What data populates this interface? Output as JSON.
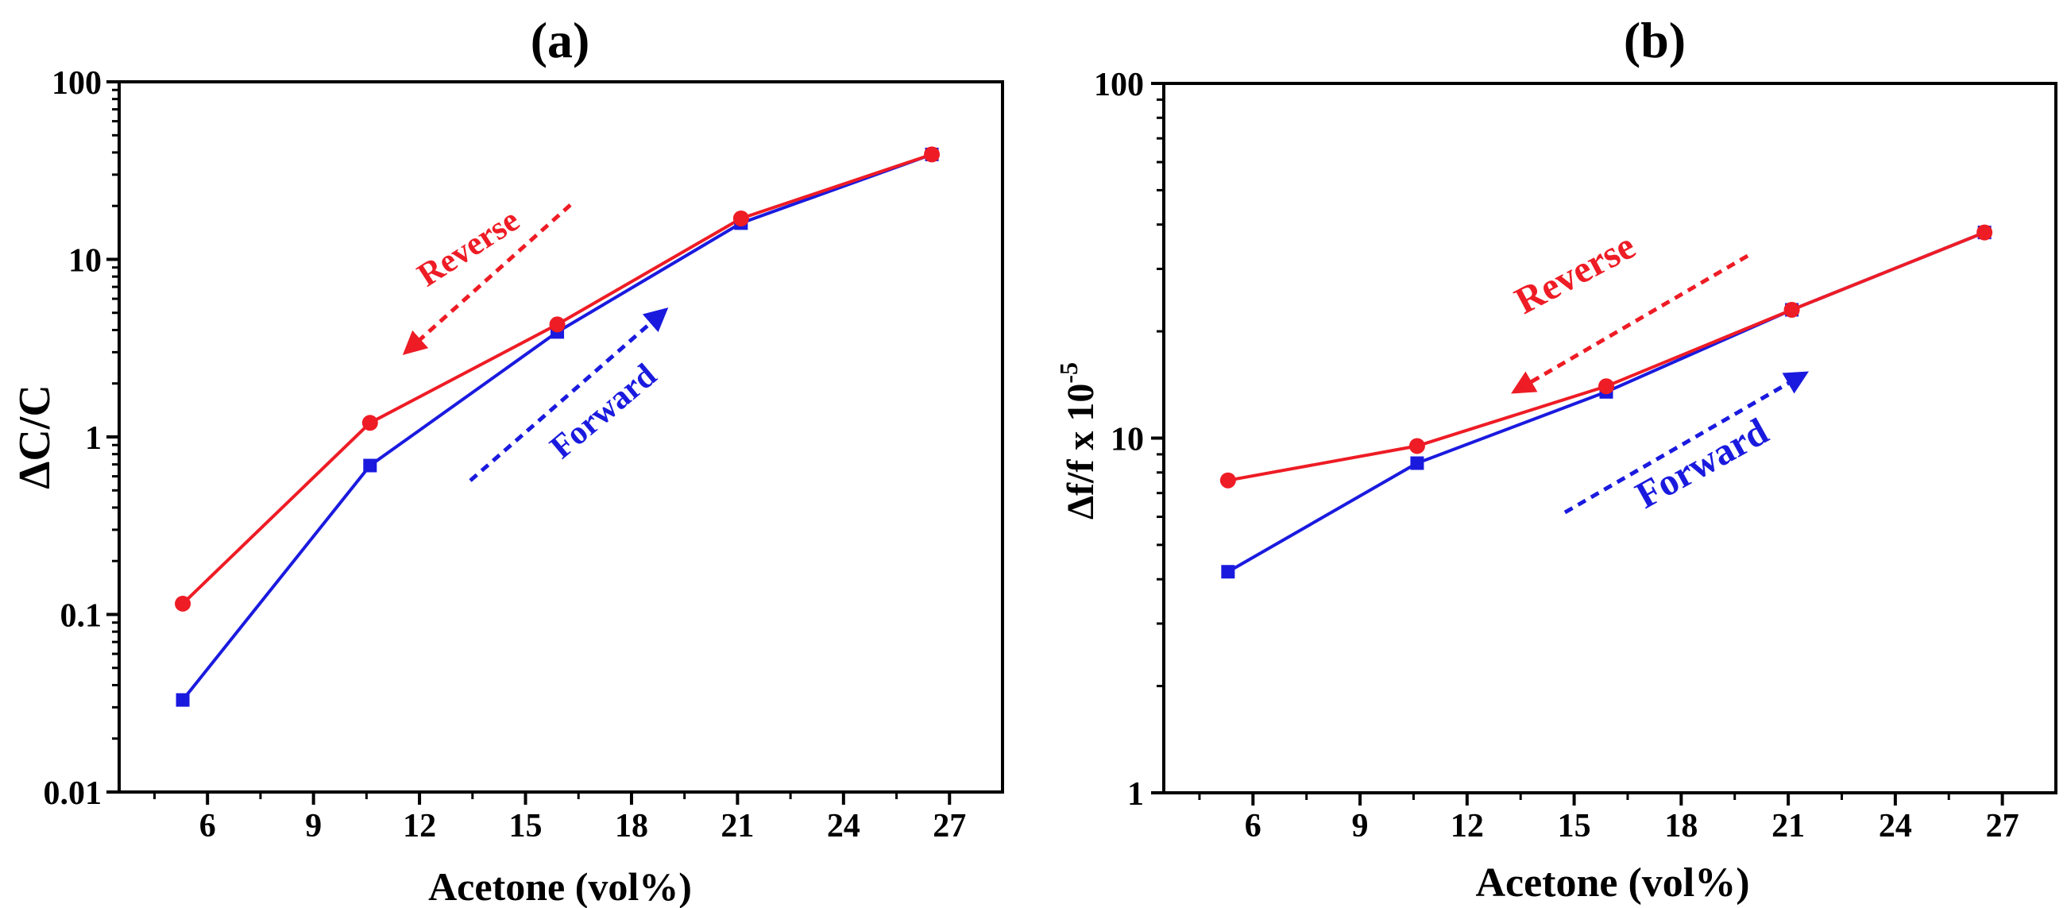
{
  "colors": {
    "reverse": "#ee1c25",
    "forward": "#1a1adf",
    "axis": "#000000"
  },
  "chart_data": [
    {
      "type": "line",
      "panel_label": "(a)",
      "title": "(a)",
      "xlabel": "Acetone (vol%)",
      "ylabel": "ΔC/C",
      "yscale": "log",
      "xlim": [
        3.5,
        28.5
      ],
      "ylim": [
        0.01,
        100
      ],
      "xticks": [
        6,
        9,
        12,
        15,
        18,
        21,
        24,
        27
      ],
      "xtick_labels": [
        "6",
        "9",
        "12",
        "15",
        "18",
        "21",
        "24",
        "27"
      ],
      "yticks": [
        0.01,
        0.1,
        1,
        10,
        100
      ],
      "ytick_labels": [
        "0.01",
        "0.1",
        "1",
        "10",
        "100"
      ],
      "series": [
        {
          "name": "Reverse",
          "marker": "circle",
          "color": "#ee1c25",
          "x": [
            5.3,
            10.6,
            15.9,
            21.1,
            26.5
          ],
          "y": [
            0.115,
            1.2,
            4.3,
            17,
            39
          ]
        },
        {
          "name": "Forward",
          "marker": "square",
          "color": "#1a1adf",
          "x": [
            5.3,
            10.6,
            15.9,
            21.1,
            26.5
          ],
          "y": [
            0.033,
            0.69,
            3.9,
            16,
            39
          ]
        }
      ],
      "annotations": [
        {
          "text": "Reverse",
          "color": "#ee1c25",
          "arrow_direction": "down-left"
        },
        {
          "text": "Forward",
          "color": "#1a1adf",
          "arrow_direction": "up-right"
        }
      ]
    },
    {
      "type": "line",
      "panel_label": "(b)",
      "title": "(b)",
      "xlabel": "Acetone (vol%)",
      "ylabel": "Δf/f x 10",
      "ylabel_exponent": "-5",
      "yscale": "log",
      "xlim": [
        3.5,
        28.5
      ],
      "ylim": [
        1,
        100
      ],
      "xticks": [
        6,
        9,
        12,
        15,
        18,
        21,
        24,
        27
      ],
      "xtick_labels": [
        "6",
        "9",
        "12",
        "15",
        "18",
        "21",
        "24",
        "27"
      ],
      "yticks": [
        1,
        10,
        100
      ],
      "ytick_labels": [
        "1",
        "10",
        "100"
      ],
      "series": [
        {
          "name": "Reverse",
          "marker": "circle",
          "color": "#ee1c25",
          "x": [
            5.3,
            10.6,
            15.9,
            21.1,
            26.5
          ],
          "y": [
            7.6,
            9.5,
            14,
            23,
            38
          ]
        },
        {
          "name": "Forward",
          "marker": "square",
          "color": "#1a1adf",
          "x": [
            5.3,
            10.6,
            15.9,
            21.1,
            26.5
          ],
          "y": [
            4.2,
            8.5,
            13.5,
            23,
            38
          ]
        }
      ],
      "annotations": [
        {
          "text": "Reverse",
          "color": "#ee1c25",
          "arrow_direction": "down-left"
        },
        {
          "text": "Forward",
          "color": "#1a1adf",
          "arrow_direction": "up-right"
        }
      ]
    }
  ]
}
